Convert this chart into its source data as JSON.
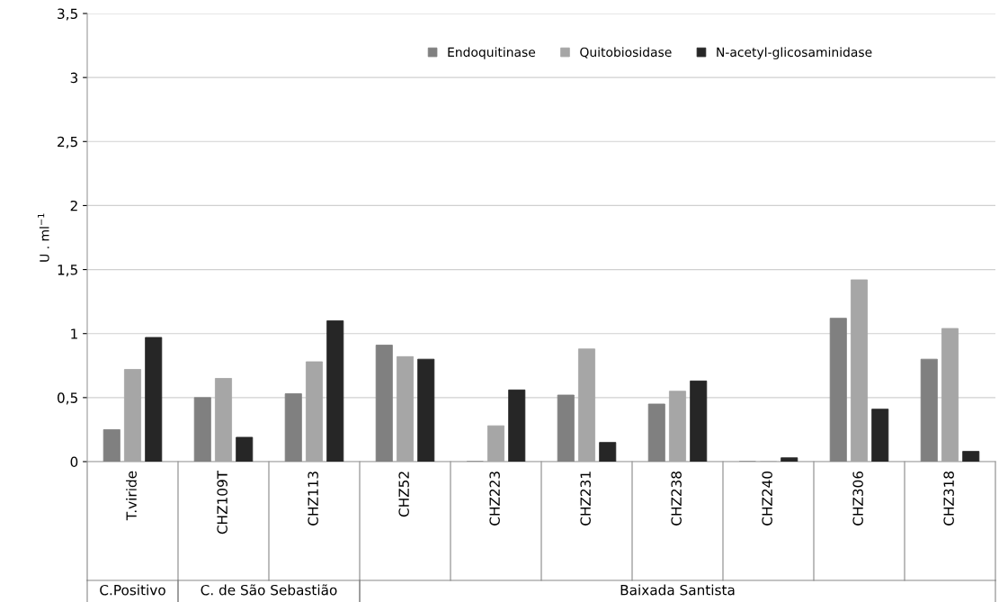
{
  "chart_data": {
    "type": "bar",
    "ylabel": "U . ml$^{−1}$",
    "categories": [
      "T.viride",
      "CHZ109T",
      "CHZ113",
      "CHZ52",
      "CHZ223",
      "CHZ231",
      "CHZ238",
      "CHZ240",
      "CHZ306",
      "CHZ318"
    ],
    "series": [
      {
        "name": "Endoquitinase",
        "color": "#808080",
        "values": [
          0.25,
          0.5,
          0.53,
          0.91,
          0,
          0.52,
          0.45,
          0,
          1.12,
          0.8
        ]
      },
      {
        "name": "Quitobiosidase",
        "color": "#a6a6a6",
        "values": [
          0.72,
          0.65,
          0.78,
          0.82,
          0.28,
          0.88,
          0.55,
          0,
          1.42,
          1.04
        ]
      },
      {
        "name": "N-acetyl-glicosaminidase",
        "color": "#262626",
        "values": [
          0.97,
          0.19,
          1.1,
          0.8,
          0.56,
          0.15,
          0.63,
          0.03,
          0.41,
          0.08
        ]
      }
    ],
    "ylim": [
      0,
      3.5
    ],
    "yticks": [
      0,
      {
        "value": 0.5,
        "label": "0,5"
      },
      1,
      {
        "value": 1.5,
        "label": "1,5"
      },
      2,
      {
        "value": 2.5,
        "label": "2,5"
      },
      3,
      {
        "value": 3.5,
        "label": "3,5"
      }
    ],
    "grid": "y",
    "legend": "top",
    "annotations": [
      "C.Positivo",
      "C. de São Sebastião",
      "Baixada Santista"
    ]
  }
}
